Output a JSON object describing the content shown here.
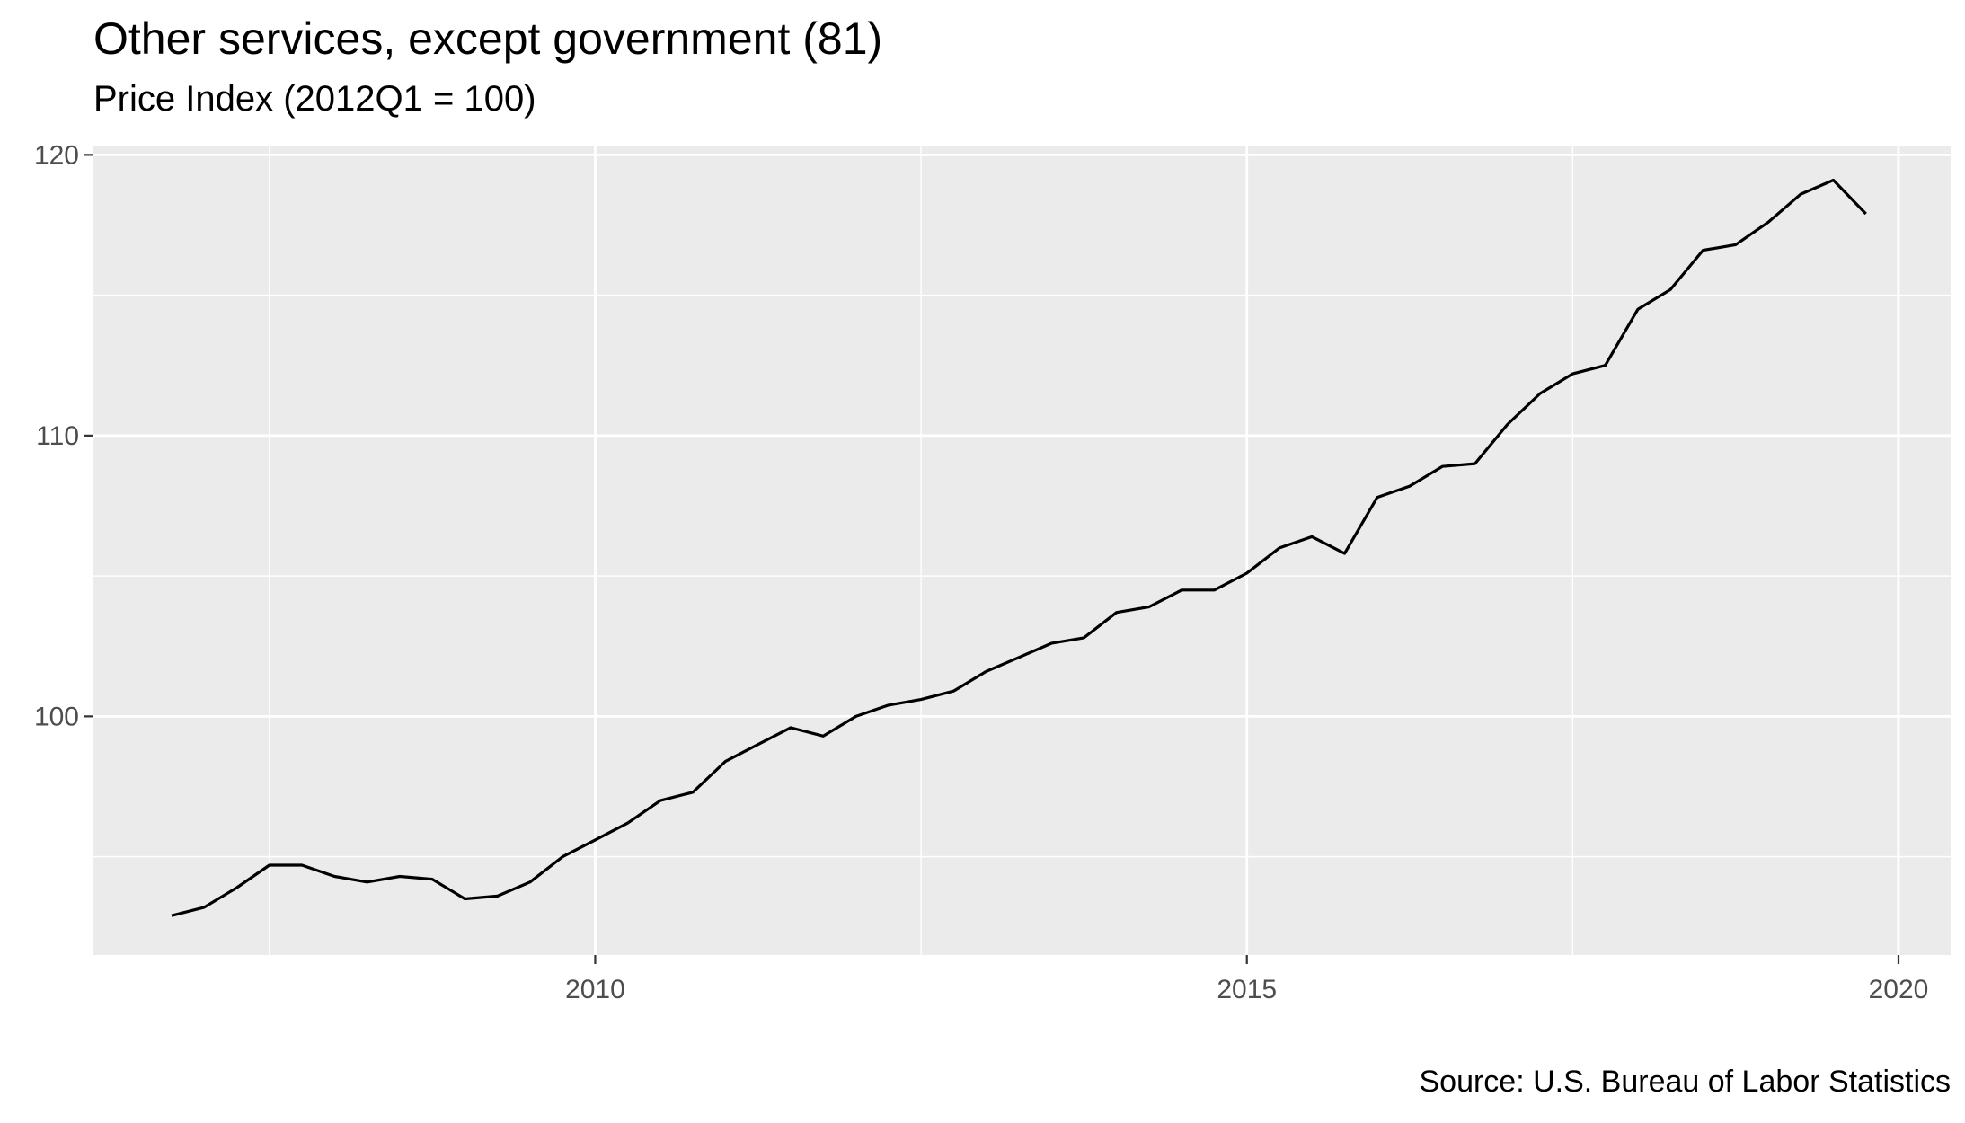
{
  "chart_data": {
    "type": "line",
    "title": "Other services, except government (81)",
    "subtitle": "Price Index (2012Q1 = 100)",
    "caption": "Source: U.S. Bureau of Labor Statistics",
    "xlabel": "",
    "ylabel": "",
    "x_ticks": [
      "2010",
      "2015",
      "2020"
    ],
    "y_ticks": [
      "100",
      "110",
      "120"
    ],
    "xlim": [
      2006.15,
      2020.4
    ],
    "ylim": [
      91.5,
      120.3
    ],
    "grid": true,
    "legend": "none",
    "line_color": "#000000",
    "panel_color": "#ebebeb",
    "series": [
      {
        "values": [
          [
            2006.75,
            92.9
          ],
          [
            2007.0,
            93.2
          ],
          [
            2007.25,
            93.9
          ],
          [
            2007.5,
            94.7
          ],
          [
            2007.75,
            94.7
          ],
          [
            2008.0,
            94.3
          ],
          [
            2008.25,
            94.1
          ],
          [
            2008.5,
            94.3
          ],
          [
            2008.75,
            94.2
          ],
          [
            2009.0,
            93.5
          ],
          [
            2009.25,
            93.6
          ],
          [
            2009.5,
            94.1
          ],
          [
            2009.75,
            95.0
          ],
          [
            2010.0,
            95.6
          ],
          [
            2010.25,
            96.2
          ],
          [
            2010.5,
            97.0
          ],
          [
            2010.75,
            97.3
          ],
          [
            2011.0,
            98.4
          ],
          [
            2011.25,
            99.0
          ],
          [
            2011.5,
            99.6
          ],
          [
            2011.75,
            99.3
          ],
          [
            2012.0,
            100.0
          ],
          [
            2012.25,
            100.4
          ],
          [
            2012.5,
            100.6
          ],
          [
            2012.75,
            100.9
          ],
          [
            2013.0,
            101.6
          ],
          [
            2013.25,
            102.1
          ],
          [
            2013.5,
            102.6
          ],
          [
            2013.75,
            102.8
          ],
          [
            2014.0,
            103.7
          ],
          [
            2014.25,
            103.9
          ],
          [
            2014.5,
            104.5
          ],
          [
            2014.75,
            104.5
          ],
          [
            2015.0,
            105.1
          ],
          [
            2015.25,
            106.0
          ],
          [
            2015.5,
            106.4
          ],
          [
            2015.75,
            105.8
          ],
          [
            2016.0,
            107.8
          ],
          [
            2016.25,
            108.2
          ],
          [
            2016.5,
            108.9
          ],
          [
            2016.75,
            109.0
          ],
          [
            2017.0,
            110.4
          ],
          [
            2017.25,
            111.5
          ],
          [
            2017.5,
            112.2
          ],
          [
            2017.75,
            112.5
          ],
          [
            2018.0,
            114.5
          ],
          [
            2018.25,
            115.2
          ],
          [
            2018.5,
            116.6
          ],
          [
            2018.75,
            116.8
          ],
          [
            2019.0,
            117.6
          ],
          [
            2019.25,
            118.6
          ],
          [
            2019.5,
            119.1
          ],
          [
            2019.75,
            117.9
          ]
        ]
      }
    ]
  }
}
